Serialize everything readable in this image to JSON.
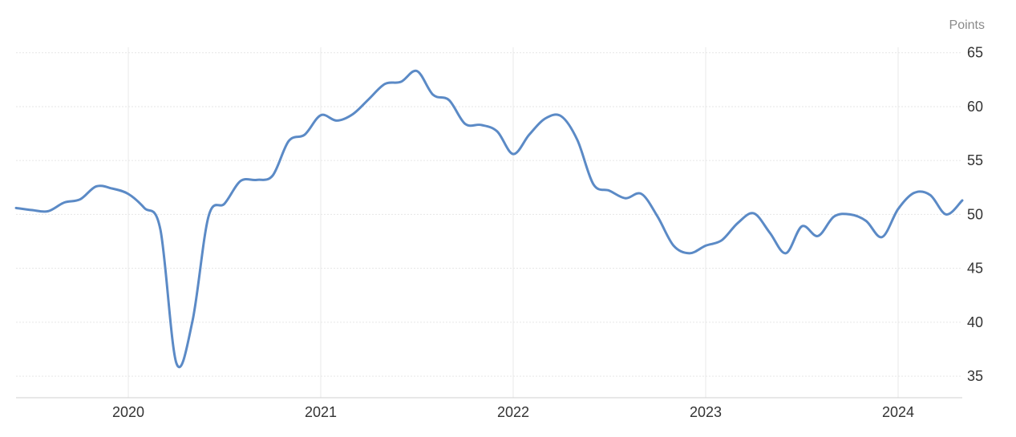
{
  "chart_data": {
    "type": "line",
    "ylabel": "Points",
    "ylim": [
      33,
      65.5
    ],
    "xlim": [
      "2019-06",
      "2024-05"
    ],
    "y_ticks": [
      "35",
      "40",
      "45",
      "50",
      "55",
      "60",
      "65"
    ],
    "x_ticks": [
      "2020",
      "2021",
      "2022",
      "2023",
      "2024"
    ],
    "grid": true,
    "y_axis_position": "right",
    "colors": {
      "line": "#5b8ac6"
    },
    "series": [
      {
        "x": [
          "2019-06",
          "2019-07",
          "2019-08",
          "2019-09",
          "2019-10",
          "2019-11",
          "2019-12",
          "2020-01",
          "2020-02",
          "2020-03",
          "2020-04",
          "2020-05",
          "2020-06",
          "2020-07",
          "2020-08",
          "2020-09",
          "2020-10",
          "2020-11",
          "2020-12",
          "2021-01",
          "2021-02",
          "2021-03",
          "2021-04",
          "2021-05",
          "2021-06",
          "2021-07",
          "2021-08",
          "2021-09",
          "2021-10",
          "2021-11",
          "2021-12",
          "2022-01",
          "2022-02",
          "2022-03",
          "2022-04",
          "2022-05",
          "2022-06",
          "2022-07",
          "2022-08",
          "2022-09",
          "2022-10",
          "2022-11",
          "2022-12",
          "2023-01",
          "2023-02",
          "2023-03",
          "2023-04",
          "2023-05",
          "2023-06",
          "2023-07",
          "2023-08",
          "2023-09",
          "2023-10",
          "2023-11",
          "2023-12",
          "2024-01",
          "2024-02",
          "2024-03",
          "2024-04",
          "2024-05"
        ],
        "values": [
          50.6,
          50.4,
          50.3,
          51.1,
          51.4,
          52.6,
          52.4,
          51.9,
          50.6,
          48.6,
          36.2,
          40.1,
          49.8,
          51.0,
          53.1,
          53.2,
          53.6,
          56.8,
          57.4,
          59.2,
          58.7,
          59.3,
          60.7,
          62.1,
          62.3,
          63.3,
          61.1,
          60.6,
          58.4,
          58.3,
          57.7,
          55.6,
          57.4,
          58.9,
          59.1,
          56.9,
          52.8,
          52.2,
          51.5,
          51.9,
          49.8,
          47.1,
          46.4,
          47.1,
          47.6,
          49.2,
          50.1,
          48.3,
          46.4,
          48.9,
          48.0,
          49.8,
          50.0,
          49.4,
          47.9,
          50.5,
          52.0,
          51.8,
          50.0,
          51.3
        ]
      }
    ]
  }
}
